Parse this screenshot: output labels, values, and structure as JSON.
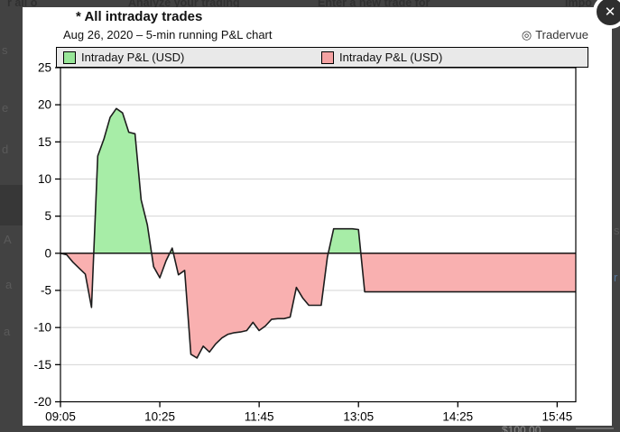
{
  "overlay": {
    "close_label": "✕",
    "brand_icon": "◎",
    "background_fragments": {
      "top": [
        "r all o",
        "Analyze your trading",
        "Enter a new trade for",
        "Impo"
      ],
      "left": [
        "s",
        "e",
        "d",
        "A",
        "a",
        "a"
      ],
      "right": [
        "s",
        "r"
      ],
      "bottom": [
        "$100.00"
      ]
    }
  },
  "chart_data": {
    "type": "area",
    "title": "* All intraday trades",
    "subtitle": "Aug 26, 2020 – 5-min running P&L chart",
    "brand": "Tradervue",
    "series_name": "Intraday P&L (USD)",
    "legend_position": "top",
    "grid": true,
    "legend": [
      {
        "label": "Intraday P&L (USD)",
        "swatch": "#98e698"
      },
      {
        "label": "Intraday P&L (USD)",
        "swatch": "#f4a2a2"
      }
    ],
    "ylabel": "",
    "xlabel": "",
    "ylim": [
      -20,
      25
    ],
    "yticks": [
      25,
      20,
      15,
      10,
      5,
      0,
      -5,
      -10,
      -15,
      -20
    ],
    "xticks": [
      "09:05",
      "10:25",
      "11:45",
      "13:05",
      "14:25",
      "15:45"
    ],
    "colors": {
      "positive_fill": "#a7eda7",
      "negative_fill": "#f9b0b0",
      "line": "#1d1d1d",
      "grid": "#d4d4d4",
      "axis": "#000000",
      "legend_bg": "#e9e9e9"
    },
    "x": [
      "09:05",
      "09:10",
      "09:15",
      "09:20",
      "09:25",
      "09:30",
      "09:35",
      "09:40",
      "09:45",
      "09:50",
      "09:55",
      "10:00",
      "10:05",
      "10:10",
      "10:15",
      "10:20",
      "10:25",
      "10:30",
      "10:35",
      "10:40",
      "10:45",
      "10:50",
      "10:55",
      "11:00",
      "11:05",
      "11:10",
      "11:15",
      "11:20",
      "11:25",
      "11:30",
      "11:35",
      "11:40",
      "11:45",
      "11:50",
      "11:55",
      "12:00",
      "12:05",
      "12:10",
      "12:15",
      "12:20",
      "12:25",
      "12:30",
      "12:35",
      "12:40",
      "12:45",
      "12:50",
      "12:55",
      "13:00",
      "13:05",
      "13:10",
      "13:15",
      "13:20",
      "13:25",
      "13:30",
      "13:35",
      "13:40",
      "13:45",
      "13:50",
      "13:55",
      "14:00",
      "14:05",
      "14:10",
      "14:15",
      "14:20",
      "14:25",
      "14:30",
      "14:35",
      "14:40",
      "14:45",
      "14:50",
      "14:55",
      "15:00",
      "15:05",
      "15:10",
      "15:15",
      "15:20",
      "15:25",
      "15:30",
      "15:35",
      "15:40",
      "15:45",
      "15:50",
      "15:55",
      "16:00"
    ],
    "values": [
      0.0,
      -0.2,
      -1.2,
      -2.0,
      -2.8,
      -7.3,
      13.1,
      15.4,
      18.3,
      19.5,
      18.9,
      16.3,
      16.1,
      7.2,
      3.8,
      -1.8,
      -3.3,
      -1.0,
      0.7,
      -2.9,
      -2.3,
      -13.6,
      -14.1,
      -12.5,
      -13.3,
      -12.2,
      -11.4,
      -10.9,
      -10.7,
      -10.6,
      -10.4,
      -9.3,
      -10.4,
      -9.8,
      -8.9,
      -8.8,
      -8.8,
      -8.6,
      -4.6,
      -6.0,
      -7.0,
      -7.0,
      -7.0,
      -0.5,
      3.3,
      3.3,
      3.3,
      3.3,
      3.2,
      -5.2,
      -5.2,
      -5.2,
      -5.2,
      -5.2,
      -5.2,
      -5.2,
      -5.2,
      -5.2,
      -5.2,
      -5.2,
      -5.2,
      -5.2,
      -5.2,
      -5.2,
      -5.2,
      -5.2,
      -5.2,
      -5.2,
      -5.2,
      -5.2,
      -5.2,
      -5.2,
      -5.2,
      -5.2,
      -5.2,
      -5.2,
      -5.2,
      -5.2,
      -5.2,
      -5.2,
      -5.2,
      -5.2,
      -5.2,
      -5.2
    ]
  }
}
